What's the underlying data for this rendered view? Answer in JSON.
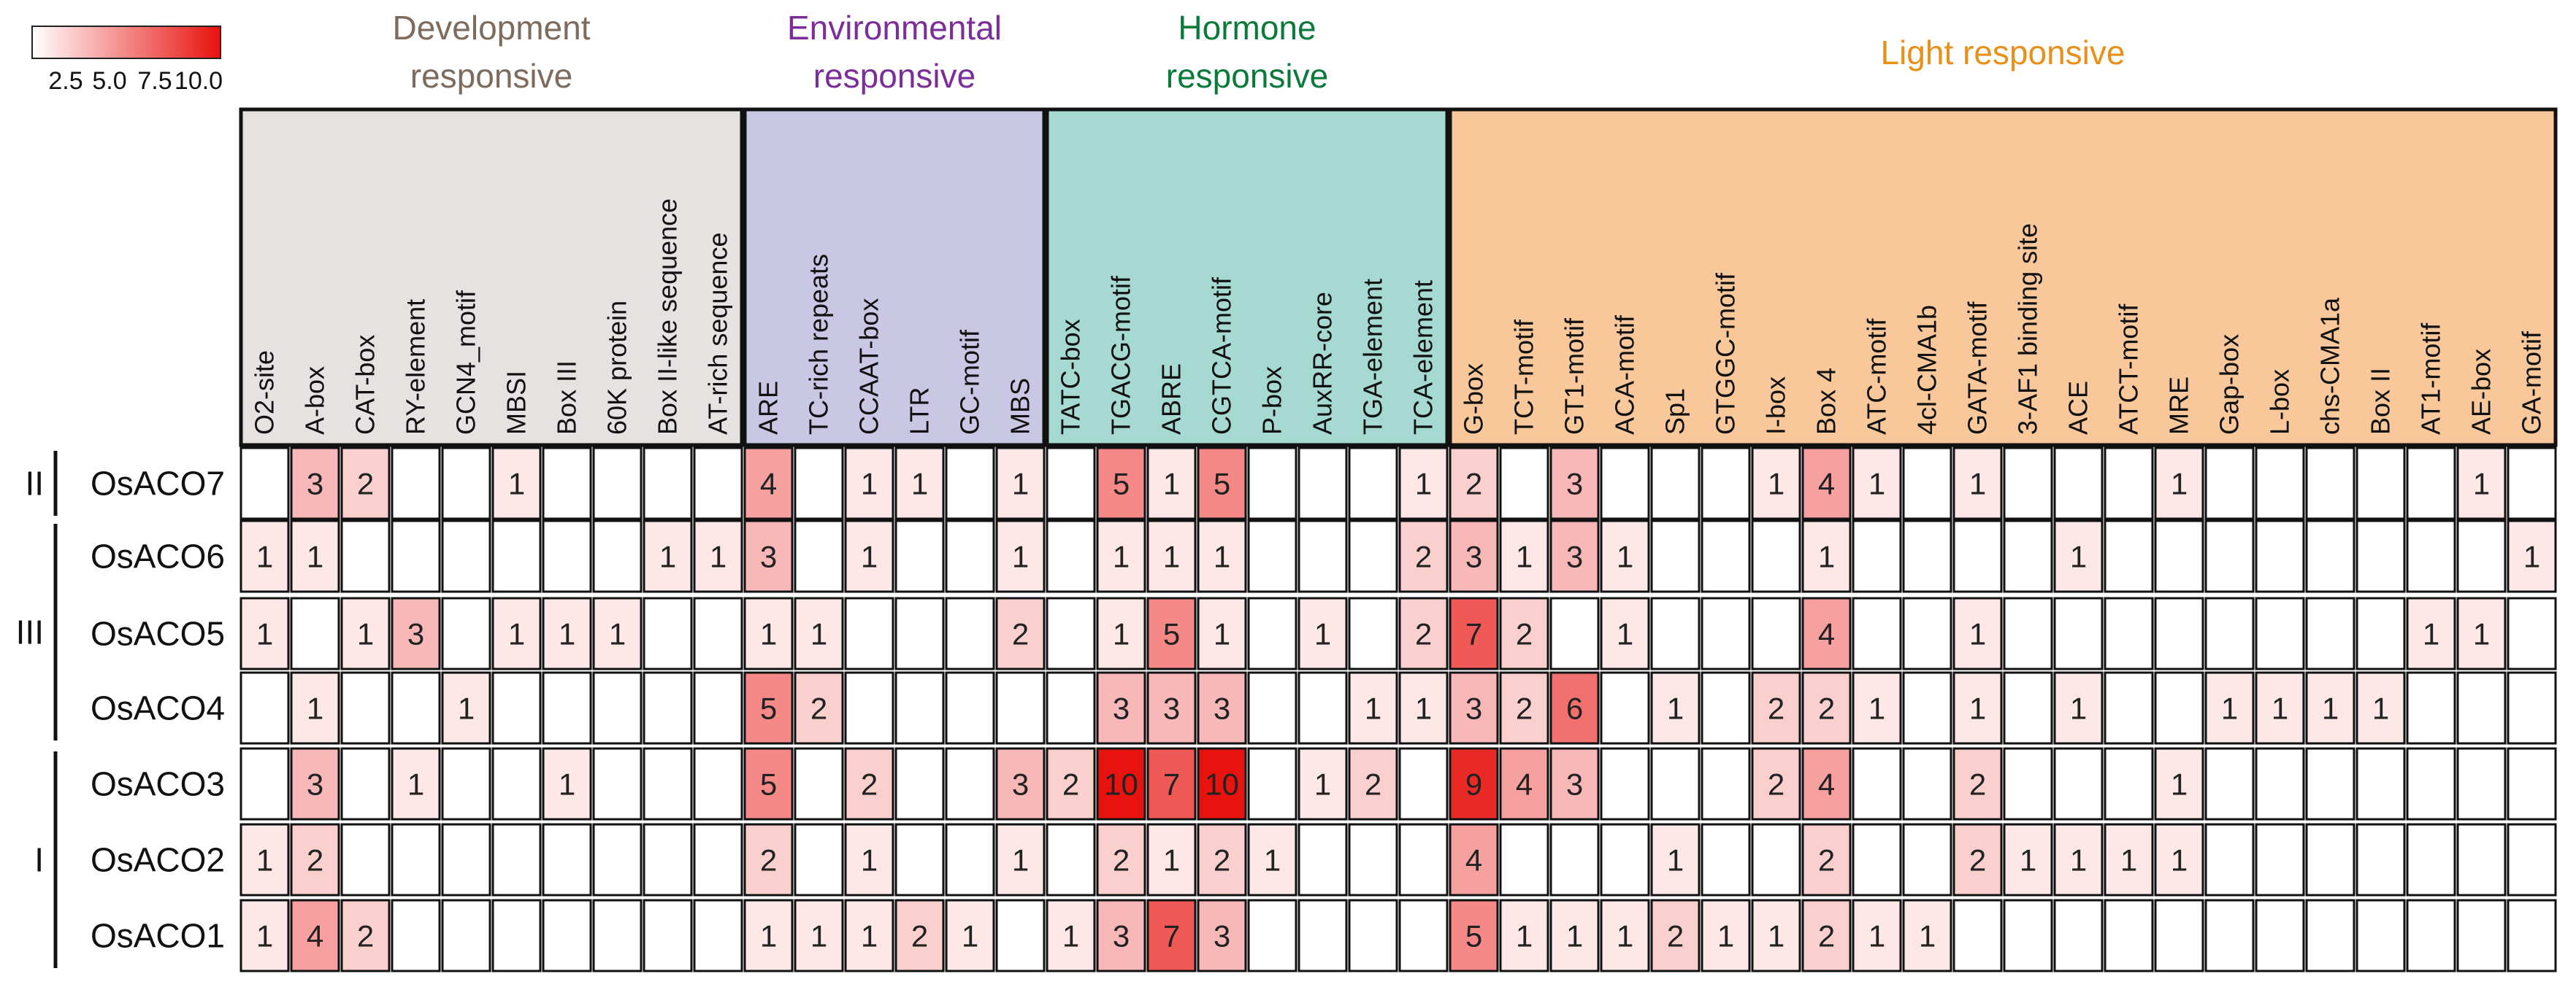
{
  "chart_data": {
    "type": "heatmap",
    "color_scale": {
      "min": 0,
      "max": 10,
      "low_color": "#ffffff",
      "high_color": "#e8120e"
    },
    "colorbar": {
      "ticks": [
        "2.5",
        "5.0",
        "7.5",
        "10.0"
      ]
    },
    "groups": [
      {
        "label_lines": [
          "Development",
          "responsive"
        ],
        "color": "#7d6b5d",
        "bg": "#e6e2e1",
        "count": 10
      },
      {
        "label_lines": [
          "Environmental",
          "responsive"
        ],
        "color": "#7b2d9a",
        "bg": "#c9c7e4",
        "count": 6
      },
      {
        "label_lines": [
          "Hormone",
          "responsive"
        ],
        "color": "#0a7a3a",
        "bg": "#a5d9d1",
        "count": 8
      },
      {
        "label_lines": [
          "Light responsive"
        ],
        "color": "#e8901a",
        "bg": "#f8c89a",
        "count": 22
      }
    ],
    "columns": [
      "O2-site",
      "A-box",
      "CAT-box",
      "RY-element",
      "GCN4_motif",
      "MBSI",
      "Box III",
      "60K protein",
      "Box II-like sequence",
      "AT-rich sequence",
      "ARE",
      "TC-rich repeats",
      "CCAAT-box",
      "LTR",
      "GC-motif",
      "MBS",
      "TATC-box",
      "TGACG-motif",
      "ABRE",
      "CGTCA-motif",
      "P-box",
      "AuxRR-core",
      "TGA-element",
      "TCA-element",
      "G-box",
      "TCT-motif",
      "GT1-motif",
      "ACA-motif",
      "Sp1",
      "GTGGC-motif",
      "I-box",
      "Box 4",
      "ATC-motif",
      "4cl-CMA1b",
      "GATA-motif",
      "3-AF1 binding site",
      "ACE",
      "ATCT-motif",
      "MRE",
      "Gap-box",
      "L-box",
      "chs-CMA1a",
      "Box II",
      "AT1-motif",
      "AE-box",
      "GA-motif"
    ],
    "rows": [
      {
        "label": "OsACO7",
        "values": [
          0,
          3,
          2,
          0,
          0,
          1,
          0,
          0,
          0,
          0,
          4,
          0,
          1,
          1,
          0,
          1,
          0,
          5,
          1,
          5,
          0,
          0,
          0,
          1,
          2,
          0,
          3,
          0,
          0,
          0,
          1,
          4,
          1,
          0,
          1,
          0,
          0,
          0,
          1,
          0,
          0,
          0,
          0,
          0,
          1,
          0
        ]
      },
      {
        "label": "OsACO6",
        "values": [
          1,
          1,
          0,
          0,
          0,
          0,
          0,
          0,
          1,
          1,
          3,
          0,
          1,
          0,
          0,
          1,
          0,
          1,
          1,
          1,
          0,
          0,
          0,
          2,
          3,
          1,
          3,
          1,
          0,
          0,
          0,
          1,
          0,
          0,
          0,
          0,
          1,
          0,
          0,
          0,
          0,
          0,
          0,
          0,
          0,
          1
        ]
      },
      {
        "label": "OsACO5",
        "values": [
          1,
          0,
          1,
          3,
          0,
          1,
          1,
          1,
          0,
          0,
          1,
          1,
          0,
          0,
          0,
          2,
          0,
          1,
          5,
          1,
          0,
          1,
          0,
          2,
          7,
          2,
          0,
          1,
          0,
          0,
          0,
          4,
          0,
          0,
          1,
          0,
          0,
          0,
          0,
          0,
          0,
          0,
          0,
          1,
          1,
          0
        ]
      },
      {
        "label": "OsACO4",
        "values": [
          0,
          1,
          0,
          0,
          1,
          0,
          0,
          0,
          0,
          0,
          5,
          2,
          0,
          0,
          0,
          0,
          0,
          3,
          3,
          3,
          0,
          0,
          1,
          1,
          3,
          2,
          6,
          0,
          1,
          0,
          2,
          2,
          1,
          0,
          1,
          0,
          1,
          0,
          0,
          1,
          1,
          1,
          1,
          0,
          0,
          0
        ]
      },
      {
        "label": "OsACO3",
        "values": [
          0,
          3,
          0,
          1,
          0,
          0,
          1,
          0,
          0,
          0,
          5,
          0,
          2,
          0,
          0,
          3,
          2,
          10,
          7,
          10,
          0,
          1,
          2,
          0,
          9,
          4,
          3,
          0,
          0,
          0,
          2,
          4,
          0,
          0,
          2,
          0,
          0,
          0,
          1,
          0,
          0,
          0,
          0,
          0,
          0,
          0
        ]
      },
      {
        "label": "OsACO2",
        "values": [
          1,
          2,
          0,
          0,
          0,
          0,
          0,
          0,
          0,
          0,
          2,
          0,
          1,
          0,
          0,
          1,
          0,
          2,
          1,
          2,
          1,
          0,
          0,
          0,
          4,
          0,
          0,
          0,
          1,
          0,
          0,
          2,
          0,
          0,
          2,
          1,
          1,
          1,
          1,
          0,
          0,
          0,
          0,
          0,
          0,
          0
        ]
      },
      {
        "label": "OsACO1",
        "values": [
          1,
          4,
          2,
          0,
          0,
          0,
          0,
          0,
          0,
          0,
          1,
          1,
          1,
          2,
          1,
          0,
          1,
          3,
          7,
          3,
          0,
          0,
          0,
          0,
          5,
          1,
          1,
          1,
          2,
          1,
          1,
          2,
          1,
          1,
          0,
          0,
          0,
          0,
          0,
          0,
          0,
          0,
          0,
          0,
          0,
          0
        ]
      }
    ],
    "row_groups": [
      {
        "label": "II",
        "from_row": 0,
        "to_row": 0
      },
      {
        "label": "III",
        "from_row": 1,
        "to_row": 3
      },
      {
        "label": "I",
        "from_row": 4,
        "to_row": 6
      }
    ]
  }
}
